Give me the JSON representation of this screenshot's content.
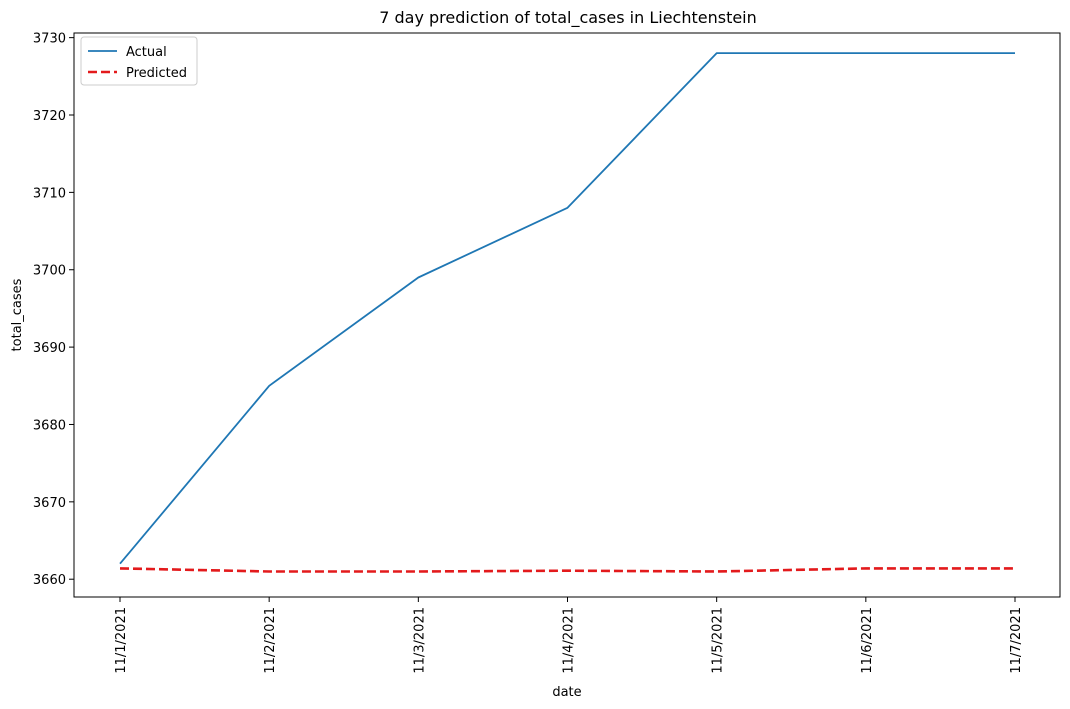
{
  "chart_data": {
    "type": "line",
    "title": "7 day prediction of total_cases in Liechtenstein",
    "xlabel": "date",
    "ylabel": "total_cases",
    "categories": [
      "11/1/2021",
      "11/2/2021",
      "11/3/2021",
      "11/4/2021",
      "11/5/2021",
      "11/6/2021",
      "11/7/2021"
    ],
    "yticks": [
      3660,
      3670,
      3680,
      3690,
      3700,
      3710,
      3720,
      3730
    ],
    "ylim": [
      3657.7,
      3730.6
    ],
    "grid": false,
    "legend_position": "top-left",
    "series": [
      {
        "name": "Actual",
        "color": "#1f77b4",
        "style": "solid",
        "values": [
          3662,
          3685,
          3699,
          3708,
          3728,
          3728,
          3728
        ]
      },
      {
        "name": "Predicted",
        "color": "#e31a1c",
        "style": "dashed",
        "values": [
          3661.4,
          3661.0,
          3661.0,
          3661.1,
          3661.0,
          3661.4,
          3661.4
        ]
      }
    ]
  }
}
